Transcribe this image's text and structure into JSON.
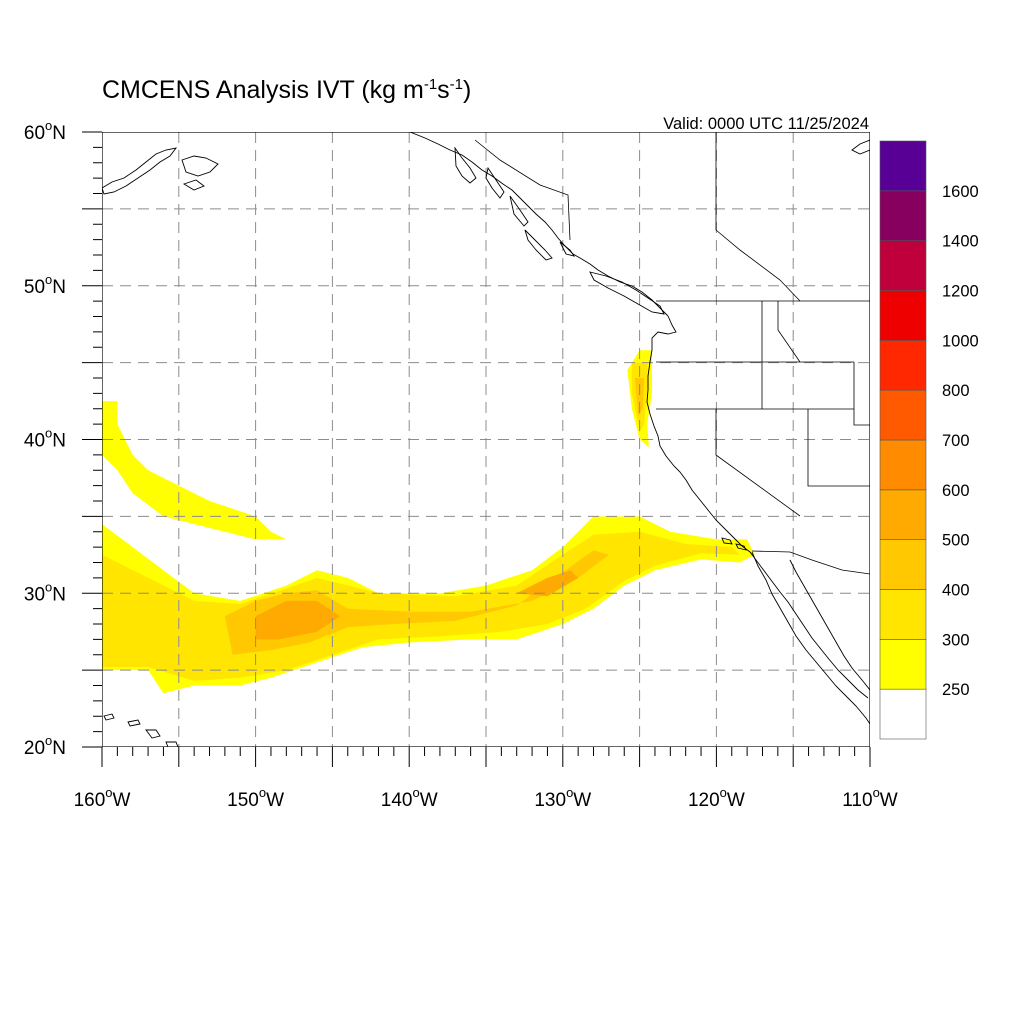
{
  "title": {
    "main": "CMCENS Analysis IVT (kg m",
    "sup1": "-1",
    "mid": "s",
    "sup2": "-1",
    "end": ")"
  },
  "valid_label": "Valid: 0000 UTC 11/25/2024",
  "map": {
    "lon_range": [
      -160,
      -110
    ],
    "lat_range": [
      20,
      60
    ],
    "grid_spacing_deg": 5,
    "lon_ticks": [
      {
        "value": -160,
        "label": "160",
        "hemi": "W"
      },
      {
        "value": -150,
        "label": "150",
        "hemi": "W"
      },
      {
        "value": -140,
        "label": "140",
        "hemi": "W"
      },
      {
        "value": -130,
        "label": "130",
        "hemi": "W"
      },
      {
        "value": -120,
        "label": "120",
        "hemi": "W"
      },
      {
        "value": -110,
        "label": "110",
        "hemi": "W"
      }
    ],
    "lat_ticks": [
      {
        "value": 60,
        "label": "60",
        "hemi": "N"
      },
      {
        "value": 50,
        "label": "50",
        "hemi": "N"
      },
      {
        "value": 40,
        "label": "40",
        "hemi": "N"
      },
      {
        "value": 30,
        "label": "30",
        "hemi": "N"
      },
      {
        "value": 20,
        "label": "20",
        "hemi": "N"
      }
    ]
  },
  "colorbar": {
    "colors": [
      "#ffffff",
      "#ffff00",
      "#ffe500",
      "#ffc800",
      "#ffaa00",
      "#ff8c00",
      "#ff5a00",
      "#ff2800",
      "#ee0000",
      "#c0003c",
      "#87005f",
      "#580096"
    ],
    "labels": [
      "250",
      "300",
      "400",
      "500",
      "600",
      "700",
      "800",
      "1000",
      "1200",
      "1400",
      "1600"
    ],
    "palette": {
      "c1": "#ffff00",
      "c2": "#ffe500",
      "c3": "#ffc800",
      "c4": "#ffaa00"
    }
  },
  "ivt_regions": [
    {
      "level": 1,
      "polygon": [
        [
          -160,
          42.5
        ],
        [
          -159,
          42.5
        ],
        [
          -159,
          41
        ],
        [
          -158,
          39
        ],
        [
          -157,
          38
        ],
        [
          -155,
          37
        ],
        [
          -153,
          36
        ],
        [
          -150,
          35
        ],
        [
          -149,
          34
        ],
        [
          -148,
          33.5
        ],
        [
          -150,
          33.5
        ],
        [
          -152,
          34
        ],
        [
          -154,
          34.5
        ],
        [
          -156,
          35
        ],
        [
          -158,
          36.5
        ],
        [
          -159,
          38
        ],
        [
          -160,
          39
        ]
      ]
    },
    {
      "level": 1,
      "polygon": [
        [
          -160,
          34.5
        ],
        [
          -158,
          33
        ],
        [
          -156,
          31.5
        ],
        [
          -154,
          30
        ],
        [
          -151,
          29.5
        ],
        [
          -148,
          30.5
        ],
        [
          -146,
          31.5
        ],
        [
          -144,
          31
        ],
        [
          -142,
          30
        ],
        [
          -138,
          30
        ],
        [
          -135,
          30.5
        ],
        [
          -132,
          31.5
        ],
        [
          -130,
          33
        ],
        [
          -128,
          35
        ],
        [
          -125,
          35
        ],
        [
          -123,
          34
        ],
        [
          -120,
          33.5
        ],
        [
          -118,
          33.5
        ],
        [
          -117.5,
          32.5
        ],
        [
          -118.5,
          32
        ],
        [
          -121,
          32.2
        ],
        [
          -124,
          31.5
        ],
        [
          -126,
          30.5
        ],
        [
          -128,
          29
        ],
        [
          -130,
          28
        ],
        [
          -131.5,
          27.5
        ],
        [
          -133,
          27
        ],
        [
          -136,
          27
        ],
        [
          -140,
          26.8
        ],
        [
          -143,
          26.5
        ],
        [
          -146,
          25.5
        ],
        [
          -149,
          24.5
        ],
        [
          -151,
          24
        ],
        [
          -154,
          24
        ],
        [
          -156,
          23.5
        ],
        [
          -157,
          25
        ],
        [
          -160,
          25
        ]
      ]
    },
    {
      "level": 1,
      "polygon": [
        [
          -125,
          45.8
        ],
        [
          -124.2,
          45.8
        ],
        [
          -124.2,
          43
        ],
        [
          -124.5,
          41
        ],
        [
          -124.4,
          39.5
        ],
        [
          -125,
          40
        ],
        [
          -125.5,
          42
        ],
        [
          -125.8,
          44.5
        ]
      ]
    },
    {
      "level": 2,
      "polygon": [
        [
          -160,
          32.5
        ],
        [
          -157,
          31
        ],
        [
          -154,
          29.5
        ],
        [
          -151,
          29.3
        ],
        [
          -148,
          30.3
        ],
        [
          -146,
          31
        ],
        [
          -142,
          30
        ],
        [
          -137,
          29.8
        ],
        [
          -133,
          30.5
        ],
        [
          -130,
          32.5
        ],
        [
          -128,
          33.8
        ],
        [
          -125,
          34
        ],
        [
          -122,
          33.2
        ],
        [
          -119,
          33
        ],
        [
          -118.5,
          32.5
        ],
        [
          -121,
          32.6
        ],
        [
          -124,
          31.8
        ],
        [
          -126,
          30.8
        ],
        [
          -128.5,
          29
        ],
        [
          -131,
          28
        ],
        [
          -134,
          27.5
        ],
        [
          -138,
          27.2
        ],
        [
          -142,
          27
        ],
        [
          -145,
          26
        ],
        [
          -148,
          25
        ],
        [
          -151,
          24.5
        ],
        [
          -154,
          24.3
        ],
        [
          -157,
          25.2
        ],
        [
          -160,
          25.2
        ]
      ]
    },
    {
      "level": 2,
      "polygon": [
        [
          -125.5,
          45
        ],
        [
          -124.5,
          45
        ],
        [
          -124.5,
          43.5
        ],
        [
          -124.7,
          41
        ],
        [
          -125,
          40.5
        ],
        [
          -125.5,
          43
        ]
      ]
    },
    {
      "level": 3,
      "polygon": [
        [
          -152,
          28.5
        ],
        [
          -150,
          29.5
        ],
        [
          -148,
          30
        ],
        [
          -146,
          30.2
        ],
        [
          -144,
          29
        ],
        [
          -140,
          28.8
        ],
        [
          -136,
          28.8
        ],
        [
          -132,
          29.5
        ],
        [
          -129,
          31
        ],
        [
          -127,
          32.5
        ],
        [
          -128,
          32.8
        ],
        [
          -130.5,
          31
        ],
        [
          -133,
          29.2
        ],
        [
          -137,
          28.2
        ],
        [
          -141,
          28
        ],
        [
          -144,
          27.8
        ],
        [
          -146.5,
          26.8
        ],
        [
          -149,
          26.3
        ],
        [
          -151.5,
          26
        ]
      ]
    },
    {
      "level": 3,
      "polygon": [
        [
          -125.3,
          44
        ],
        [
          -124.7,
          44
        ],
        [
          -124.8,
          42
        ],
        [
          -125.1,
          41.5
        ]
      ]
    },
    {
      "level": 4,
      "polygon": [
        [
          -150,
          28.5
        ],
        [
          -148,
          29.5
        ],
        [
          -146,
          29.5
        ],
        [
          -144.5,
          28.5
        ],
        [
          -146,
          27.5
        ],
        [
          -148.5,
          27
        ],
        [
          -150,
          27
        ]
      ]
    },
    {
      "level": 4,
      "polygon": [
        [
          -133,
          30
        ],
        [
          -131,
          31
        ],
        [
          -129.5,
          31.5
        ],
        [
          -129,
          31
        ],
        [
          -131,
          29.8
        ]
      ]
    }
  ]
}
